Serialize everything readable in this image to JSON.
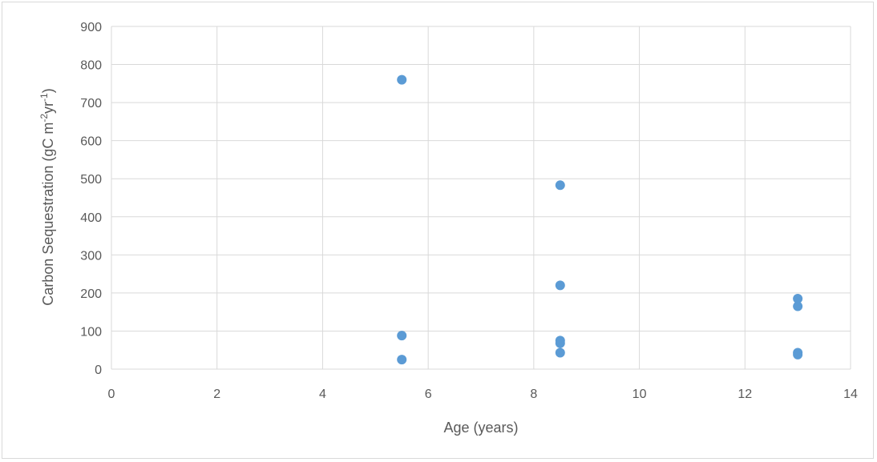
{
  "chart_data": {
    "type": "scatter",
    "title": "",
    "xlabel": "Age (years)",
    "ylabel_parts": {
      "main": "Carbon Sequestration (gC m",
      "sup1": "-2",
      "mid": "yr",
      "sup2": "-1",
      "end": ")"
    },
    "xlim": [
      0,
      14
    ],
    "ylim": [
      0,
      900
    ],
    "xticks": [
      0,
      2,
      4,
      6,
      8,
      10,
      12,
      14
    ],
    "yticks": [
      0,
      100,
      200,
      300,
      400,
      500,
      600,
      700,
      800,
      900
    ],
    "grid": true,
    "legend": "none",
    "marker_color": "#5b9bd5",
    "gridline_color": "#d9d9d9",
    "points": [
      {
        "x": 5.5,
        "y": 760
      },
      {
        "x": 5.5,
        "y": 88
      },
      {
        "x": 5.5,
        "y": 25
      },
      {
        "x": 8.5,
        "y": 483
      },
      {
        "x": 8.5,
        "y": 220
      },
      {
        "x": 8.5,
        "y": 75
      },
      {
        "x": 8.5,
        "y": 68
      },
      {
        "x": 8.5,
        "y": 43
      },
      {
        "x": 13,
        "y": 185
      },
      {
        "x": 13,
        "y": 165
      },
      {
        "x": 13,
        "y": 43
      },
      {
        "x": 13,
        "y": 38
      }
    ]
  }
}
